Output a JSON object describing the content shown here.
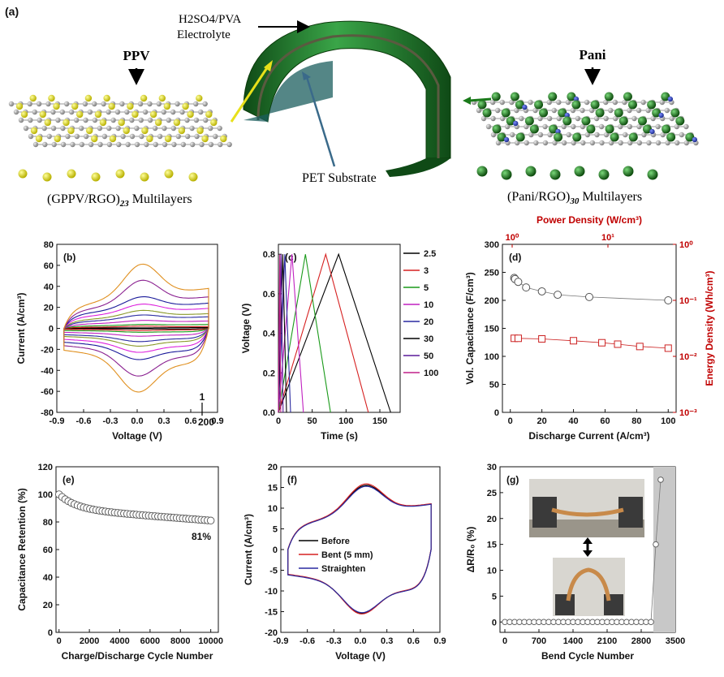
{
  "schematic": {
    "panel_label": "(a)",
    "ppv_label": "PPV",
    "pani_label": "Pani",
    "electrolyte_line1": "H2SO4/PVA",
    "electrolyte_line2": "Electrolyte",
    "substrate_label": "PET Substrate",
    "left_multilayer_base": "(GPPV/RGO)",
    "left_multilayer_sub": "23",
    "left_multilayer_tail": " Multilayers",
    "right_multilayer_base": "(Pani/RGO)",
    "right_multilayer_sub": "30",
    "right_multilayer_tail": " Multilayers",
    "colors": {
      "ppv_atom": "#e8e01a",
      "pani_atom": "#1e7a1e",
      "nitrogen_atom": "#2b3db8",
      "graphene_atom": "#a8a8a8",
      "device": "#1f7a2a"
    }
  },
  "chart_data": [
    {
      "id": "b",
      "panel_label": "(b)",
      "type": "line",
      "xlabel": "Voltage (V)",
      "ylabel": "Current (A/cm³)",
      "xlim": [
        -0.9,
        0.9
      ],
      "ylim": [
        -80,
        80
      ],
      "xticks": [
        -0.9,
        -0.6,
        -0.3,
        0.0,
        0.3,
        0.6,
        0.9
      ],
      "xtick_labels": [
        "-0.9",
        "-0.6",
        "-0.3",
        "0.0",
        "0.3",
        "0.6",
        "0.9"
      ],
      "yticks": [
        -80,
        -60,
        -40,
        -20,
        0,
        20,
        40,
        60,
        80
      ],
      "ytick_labels": [
        "-80",
        "-60",
        "-40",
        "-20",
        "0",
        "20",
        "40",
        "60",
        "80"
      ],
      "annotation_top": "1",
      "annotation_bottom": "200",
      "series": [
        {
          "color": "#000000",
          "peak": 0.6,
          "base": 0.7
        },
        {
          "color": "#d62020",
          "peak": 2.5,
          "base": 1.7
        },
        {
          "color": "#1a9a1a",
          "peak": 4.5,
          "base": 3.7
        },
        {
          "color": "#c020c0",
          "peak": 9,
          "base": 7
        },
        {
          "color": "#2a2aa0",
          "peak": 15,
          "base": 11
        },
        {
          "color": "#8a9a2a",
          "peak": 20,
          "base": 14
        },
        {
          "color": "#dd22dd",
          "peak": 27,
          "base": 19
        },
        {
          "color": "#1a1a9a",
          "peak": 35,
          "base": 24
        },
        {
          "color": "#8a2090",
          "peak": 52,
          "base": 30
        },
        {
          "color": "#e09020",
          "peak": 69,
          "base": 38
        }
      ]
    },
    {
      "id": "c",
      "panel_label": "(c)",
      "type": "line",
      "xlabel": "Time (s)",
      "ylabel": "Voltage (V)",
      "xlim": [
        0,
        180
      ],
      "ylim": [
        0,
        0.85
      ],
      "xticks": [
        0,
        50,
        100,
        150
      ],
      "xtick_labels": [
        "0",
        "50",
        "100",
        "150"
      ],
      "yticks": [
        0.0,
        0.2,
        0.4,
        0.6,
        0.8
      ],
      "ytick_labels": [
        "0.0",
        "0.2",
        "0.4",
        "0.6",
        "0.8"
      ],
      "series": [
        {
          "name": "2.5",
          "color": "#000000",
          "t_peak": 89,
          "t_end": 166
        },
        {
          "name": "3",
          "color": "#d62020",
          "t_peak": 70,
          "t_end": 133
        },
        {
          "name": "5",
          "color": "#1a9a1a",
          "t_peak": 40,
          "t_end": 77
        },
        {
          "name": "10",
          "color": "#c020c0",
          "t_peak": 20,
          "t_end": 37
        },
        {
          "name": "20",
          "color": "#2a2aa0",
          "t_peak": 9.5,
          "t_end": 18
        },
        {
          "name": "30",
          "color": "#000000",
          "t_peak": 6.5,
          "t_end": 12
        },
        {
          "name": "50",
          "color": "#5a1a9a",
          "t_peak": 4,
          "t_end": 7
        },
        {
          "name": "100",
          "color": "#c0208a",
          "t_peak": 2,
          "t_end": 3.5
        }
      ]
    },
    {
      "id": "d",
      "panel_label": "(d)",
      "type": "scatter",
      "xlabel": "Discharge Current (A/cm³)",
      "ylabel": "Vol. Capacitance (F/cm³)",
      "ylabel_right": "Energy Density (Wh/cm³)",
      "xlabel_top": "Power Density (W/cm³)",
      "xlim": [
        -5,
        105
      ],
      "ylim": [
        0,
        300
      ],
      "xticks": [
        0,
        20,
        40,
        60,
        80,
        100
      ],
      "xtick_labels": [
        "0",
        "20",
        "40",
        "60",
        "80",
        "100"
      ],
      "yticks": [
        0,
        50,
        100,
        150,
        200,
        250,
        300
      ],
      "ytick_labels": [
        "0",
        "50",
        "100",
        "150",
        "200",
        "250",
        "300"
      ],
      "top_ticks": [
        "10⁰",
        "10¹"
      ],
      "right_ticks": [
        "10⁰",
        "10⁻¹",
        "10⁻²",
        "10⁻³"
      ],
      "series": [
        {
          "name": "Vol. Capacitance",
          "color": "#555555",
          "x": [
            2.5,
            3,
            5,
            10,
            20,
            30,
            50,
            100
          ],
          "y": [
            240,
            238,
            233,
            223,
            216,
            210,
            206,
            200
          ]
        },
        {
          "name": "Energy Density",
          "color": "#cc2222",
          "x": [
            2.5,
            5,
            20,
            40,
            58,
            68,
            82,
            100
          ],
          "y": [
            0.021,
            0.021,
            0.0205,
            0.019,
            0.0175,
            0.0165,
            0.015,
            0.014
          ]
        }
      ]
    },
    {
      "id": "e",
      "panel_label": "(e)",
      "type": "scatter",
      "xlabel": "Charge/Discharge Cycle Number",
      "ylabel": "Capacitance Retention (%)",
      "xlim": [
        -200,
        10500
      ],
      "ylim": [
        0,
        120
      ],
      "xticks": [
        0,
        2000,
        4000,
        6000,
        8000,
        10000
      ],
      "xtick_labels": [
        "0",
        "2000",
        "4000",
        "6000",
        "8000",
        "10000"
      ],
      "yticks": [
        0,
        20,
        40,
        60,
        80,
        100,
        120
      ],
      "ytick_labels": [
        "0",
        "20",
        "40",
        "60",
        "80",
        "100",
        "120"
      ],
      "annotation": "81%",
      "series": [
        {
          "color": "#555555",
          "x0": 0,
          "x1": 10000,
          "n": 50,
          "y_start": 100,
          "y_end": 81
        }
      ]
    },
    {
      "id": "f",
      "panel_label": "(f)",
      "type": "line",
      "xlabel": "Voltage (V)",
      "ylabel": "Current (A/cm³)",
      "xlim": [
        -0.9,
        0.9
      ],
      "ylim": [
        -20,
        20
      ],
      "xticks": [
        -0.9,
        -0.6,
        -0.3,
        0.0,
        0.3,
        0.6,
        0.9
      ],
      "xtick_labels": [
        "-0.9",
        "-0.6",
        "-0.3",
        "0.0",
        "0.3",
        "0.6",
        "0.9"
      ],
      "yticks": [
        -20,
        -15,
        -10,
        -5,
        0,
        5,
        10,
        15,
        20
      ],
      "ytick_labels": [
        "-20",
        "-15",
        "-10",
        "-5",
        "0",
        "5",
        "10",
        "15",
        "20"
      ],
      "series": [
        {
          "name": "Before",
          "color": "#000000"
        },
        {
          "name": "Bent (5 mm)",
          "color": "#d62020"
        },
        {
          "name": "Straighten",
          "color": "#2a2aa0"
        }
      ]
    },
    {
      "id": "g",
      "panel_label": "(g)",
      "type": "scatter",
      "xlabel": "Bend Cycle Number",
      "ylabel": "ΔR/R₀ (%)",
      "xlim": [
        -100,
        3500
      ],
      "ylim": [
        -2,
        30
      ],
      "xticks": [
        0,
        700,
        1400,
        2100,
        2800,
        3500
      ],
      "xtick_labels": [
        "0",
        "700",
        "1400",
        "2100",
        "2800",
        "3500"
      ],
      "yticks": [
        0,
        5,
        10,
        15,
        20,
        25,
        30
      ],
      "ytick_labels": [
        "0",
        "5",
        "10",
        "15",
        "20",
        "25",
        "30"
      ],
      "series": [
        {
          "color": "#555555",
          "x": [
            0,
            100,
            200,
            300,
            400,
            500,
            600,
            700,
            800,
            900,
            1000,
            1100,
            1200,
            1300,
            1400,
            1500,
            1600,
            1700,
            1800,
            1900,
            2000,
            2100,
            2200,
            2300,
            2400,
            2500,
            2600,
            2700,
            2800,
            2900,
            3000,
            3100,
            3200
          ],
          "y": [
            0,
            0,
            0,
            0,
            0,
            0,
            0,
            0,
            0,
            0,
            0,
            0,
            0,
            0,
            0,
            0,
            0,
            0,
            0,
            0,
            0,
            0,
            0,
            0,
            0,
            0,
            0,
            0,
            0,
            0,
            0,
            15,
            27.5
          ]
        }
      ],
      "shaded_from": 3050
    }
  ]
}
